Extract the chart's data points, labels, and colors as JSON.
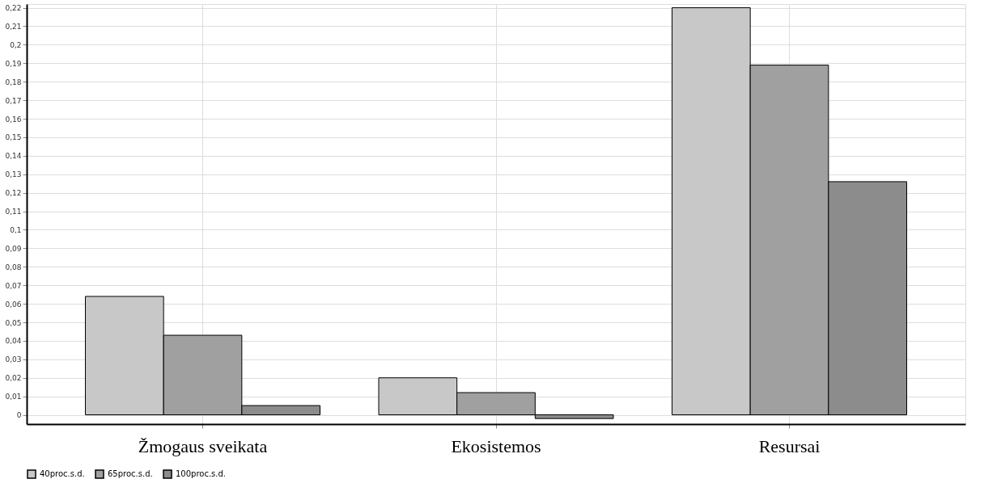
{
  "chart_data": {
    "type": "bar",
    "categories": [
      "Žmogaus sveikata",
      "Ekosistemos",
      "Resursai"
    ],
    "series": [
      {
        "name": "40proc.s.d.",
        "color": "#c8c8c8",
        "values": [
          0.064,
          0.02,
          0.22
        ]
      },
      {
        "name": "65proc.s.d.",
        "color": "#a0a0a0",
        "values": [
          0.043,
          0.012,
          0.189
        ]
      },
      {
        "name": "100proc.s.d.",
        "color": "#8c8c8c",
        "values": [
          0.005,
          -0.002,
          0.126
        ]
      }
    ],
    "ylim": [
      -0.005,
      0.222
    ],
    "yticks": [
      0,
      {
        "value": 0.01,
        "label": "0,01"
      },
      {
        "value": 0.02,
        "label": "0,02"
      },
      {
        "value": 0.03,
        "label": "0,03"
      },
      {
        "value": 0.04,
        "label": "0,04"
      },
      {
        "value": 0.05,
        "label": "0,05"
      },
      {
        "value": 0.06,
        "label": "0,06"
      },
      {
        "value": 0.07,
        "label": "0,07"
      },
      {
        "value": 0.08,
        "label": "0,08"
      },
      {
        "value": 0.09,
        "label": "0,09"
      },
      {
        "value": 0.1,
        "label": "0,1"
      },
      {
        "value": 0.11,
        "label": "0,11"
      },
      {
        "value": 0.12,
        "label": "0,12"
      },
      {
        "value": 0.13,
        "label": "0,13"
      },
      {
        "value": 0.14,
        "label": "0,14"
      },
      {
        "value": 0.15,
        "label": "0,15"
      },
      {
        "value": 0.16,
        "label": "0,16"
      },
      {
        "value": 0.17,
        "label": "0,17"
      },
      {
        "value": 0.18,
        "label": "0,18"
      },
      {
        "value": 0.19,
        "label": "0,19"
      },
      {
        "value": 0.2,
        "label": "0,2"
      },
      {
        "value": 0.21,
        "label": "0,21"
      },
      {
        "value": 0.22,
        "label": "0,22"
      }
    ],
    "grid": true,
    "legend": "bottom"
  }
}
